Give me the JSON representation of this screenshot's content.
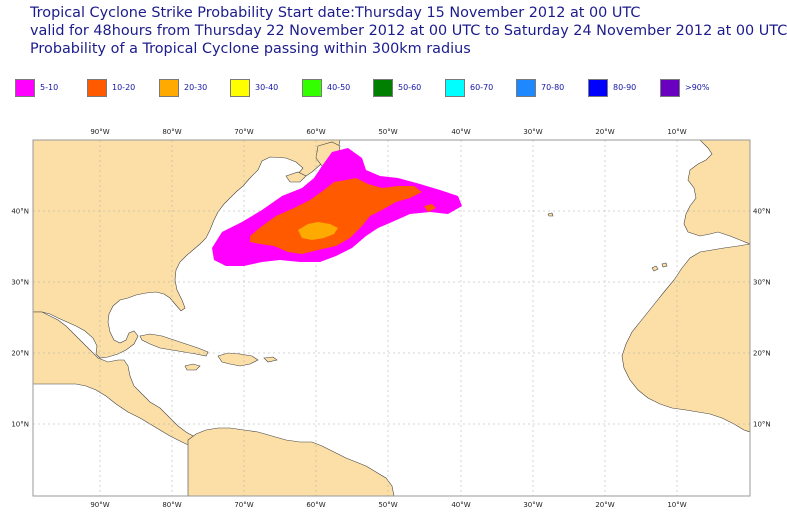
{
  "title": {
    "line1": "Tropical Cyclone Strike Probability Start date:Thursday 15 November 2012 at 00 UTC",
    "line2": "valid for 48hours from Thursday 22 November 2012 at 00 UTC to  Saturday 24 November 2012 at 00 UTC",
    "line3": "Probability of a Tropical Cyclone passing within 300km radius"
  },
  "legend": [
    {
      "label": "5-10",
      "color": "#ff00ff"
    },
    {
      "label": "10-20",
      "color": "#ff5a00"
    },
    {
      "label": "20-30",
      "color": "#ffaa00"
    },
    {
      "label": "30-40",
      "color": "#ffff00"
    },
    {
      "label": "40-50",
      "color": "#33ff00"
    },
    {
      "label": "50-60",
      "color": "#008000"
    },
    {
      "label": "60-70",
      "color": "#00ffff"
    },
    {
      "label": "70-80",
      "color": "#1e88ff"
    },
    {
      "label": "80-90",
      "color": "#0000ff"
    },
    {
      "label": ">90%",
      "color": "#6a00c0"
    }
  ],
  "map": {
    "land_color": "#fbdfa6",
    "ocean_color": "#ffffff",
    "lon_labels": [
      "90°W",
      "80°W",
      "70°W",
      "60°W",
      "50°W",
      "40°W",
      "30°W",
      "20°W",
      "10°W"
    ],
    "lat_labels": [
      "40°N",
      "30°N",
      "20°N",
      "10°N"
    ]
  }
}
